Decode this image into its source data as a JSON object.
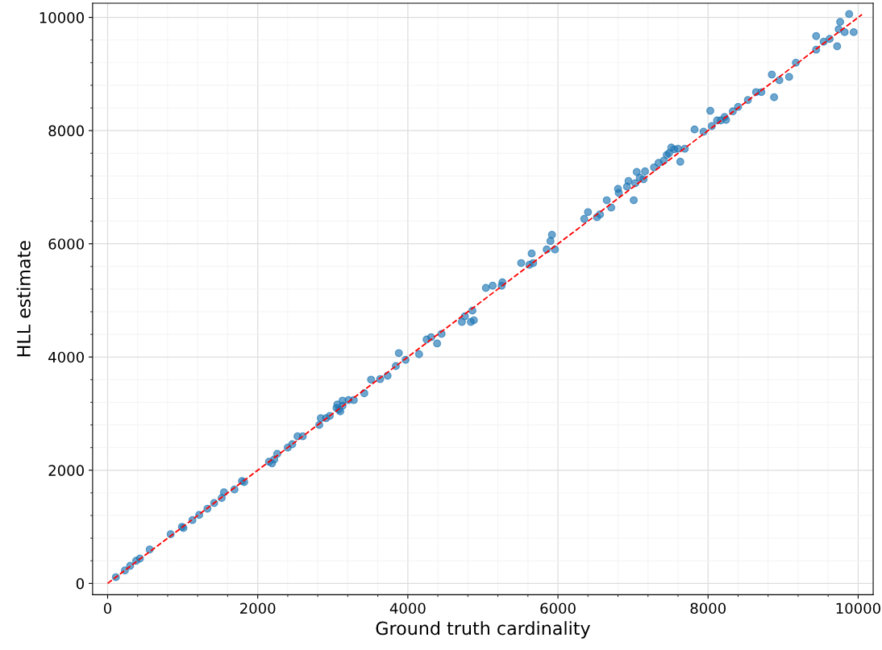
{
  "chart_data": {
    "type": "scatter",
    "xlabel": "Ground truth cardinality",
    "ylabel": "HLL estimate",
    "xlim": [
      -200,
      10200
    ],
    "ylim": [
      -200,
      10250
    ],
    "xticks": [
      0,
      2000,
      4000,
      6000,
      8000,
      10000
    ],
    "yticks": [
      0,
      2000,
      4000,
      6000,
      8000,
      10000
    ],
    "grid": true,
    "series": [
      {
        "color": "#1f77b4",
        "marker": "circle",
        "x": [
          110,
          230,
          300,
          380,
          430,
          560,
          840,
          990,
          1010,
          1130,
          1220,
          1330,
          1420,
          1520,
          1550,
          1690,
          1790,
          1820,
          2150,
          2190,
          2220,
          2260,
          2400,
          2460,
          2530,
          2600,
          2820,
          2840,
          2910,
          2960,
          3050,
          3060,
          3080,
          3100,
          3130,
          3130,
          3210,
          3280,
          3420,
          3510,
          3630,
          3730,
          3840,
          3880,
          3970,
          4150,
          4250,
          4310,
          4390,
          4450,
          4720,
          4760,
          4840,
          4860,
          4880,
          5040,
          5130,
          5250,
          5260,
          5510,
          5620,
          5650,
          5670,
          5850,
          5900,
          5920,
          5960,
          6350,
          6400,
          6520,
          6560,
          6650,
          6710,
          6800,
          6810,
          6920,
          6940,
          7010,
          7030,
          7050,
          7090,
          7140,
          7160,
          7280,
          7340,
          7410,
          7450,
          7480,
          7510,
          7550,
          7600,
          7630,
          7690,
          7820,
          7940,
          8030,
          8050,
          8120,
          8170,
          8220,
          8240,
          8330,
          8400,
          8530,
          8640,
          8710,
          8850,
          8880,
          8950,
          9080,
          9170,
          9440,
          9440,
          9540,
          9620,
          9720,
          9740,
          9760,
          9820,
          9880,
          9940
        ],
        "values": [
          110,
          230,
          310,
          400,
          440,
          600,
          870,
          1000,
          980,
          1120,
          1210,
          1320,
          1420,
          1510,
          1610,
          1660,
          1810,
          1790,
          2150,
          2120,
          2190,
          2290,
          2400,
          2460,
          2600,
          2600,
          2800,
          2920,
          2920,
          2960,
          3100,
          3160,
          3070,
          3040,
          3140,
          3230,
          3240,
          3240,
          3360,
          3600,
          3610,
          3670,
          3840,
          4070,
          3950,
          4050,
          4310,
          4350,
          4240,
          4410,
          4620,
          4720,
          4620,
          4820,
          4650,
          5220,
          5260,
          5260,
          5320,
          5660,
          5630,
          5830,
          5660,
          5900,
          6050,
          6160,
          5900,
          6440,
          6560,
          6470,
          6520,
          6770,
          6640,
          6970,
          6900,
          7010,
          7110,
          6770,
          7070,
          7270,
          7170,
          7140,
          7280,
          7350,
          7430,
          7470,
          7570,
          7600,
          7700,
          7670,
          7680,
          7450,
          7680,
          8020,
          7980,
          8350,
          8080,
          8180,
          8180,
          8240,
          8190,
          8340,
          8420,
          8540,
          8680,
          8680,
          8990,
          8590,
          8890,
          8950,
          9200,
          9430,
          9670,
          9570,
          9620,
          9490,
          9790,
          9920,
          9740,
          10060,
          9740
        ]
      },
      {
        "type": "line",
        "color": "#ff0000",
        "marker": "none",
        "line_style": "dashed",
        "x": [
          0,
          10050
        ],
        "values": [
          0,
          10050
        ]
      }
    ]
  }
}
